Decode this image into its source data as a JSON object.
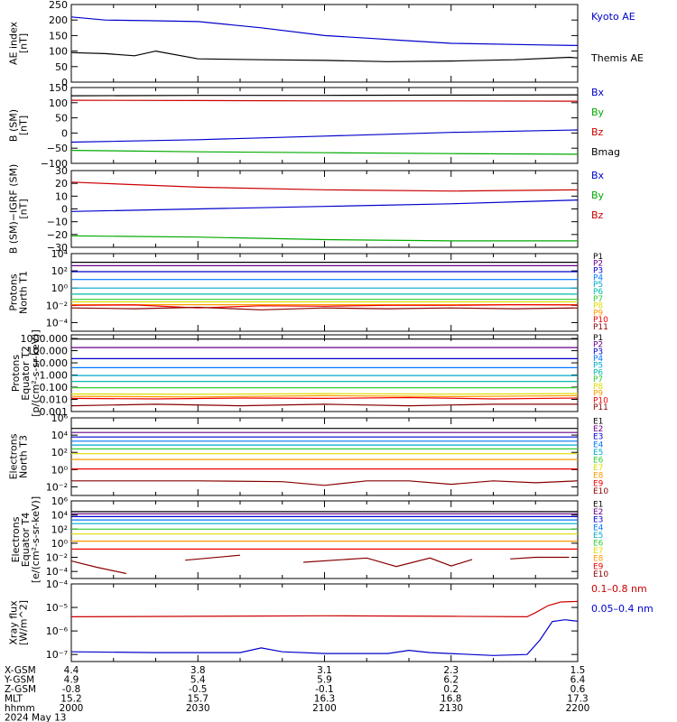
{
  "time_axis": {
    "rows": [
      {
        "label": "X-GSM",
        "values": [
          "4.4",
          "3.8",
          "3.1",
          "2.3",
          "1.5"
        ]
      },
      {
        "label": "Y-GSM",
        "values": [
          "4.9",
          "5.4",
          "5.9",
          "6.2",
          "6.4"
        ]
      },
      {
        "label": "Z-GSM",
        "values": [
          "-0.8",
          "-0.5",
          "-0.1",
          "0.2",
          "0.6"
        ]
      },
      {
        "label": "MLT",
        "values": [
          "15.2",
          "15.7",
          "16.3",
          "16.8",
          "17.3"
        ]
      },
      {
        "label": "hhmm",
        "values": [
          "2000",
          "2030",
          "2100",
          "2130",
          "2200"
        ]
      }
    ],
    "date": "2024 May 13"
  },
  "chart_data": [
    {
      "type": "line",
      "ylabel": [
        "AE index",
        "[nT]"
      ],
      "ylim": [
        0,
        250
      ],
      "yscale": "linear",
      "yticks": [
        0,
        50,
        100,
        150,
        200,
        250
      ],
      "ytick_labels": [
        "0",
        "50",
        "100",
        "150",
        "200",
        "250"
      ],
      "series": [
        {
          "name": "Kyoto AE",
          "color": "#0000cc",
          "t": [
            0,
            8,
            18,
            30,
            45,
            60,
            72,
            78,
            90,
            110,
            120
          ],
          "y": [
            210,
            200,
            198,
            195,
            175,
            150,
            140,
            135,
            125,
            120,
            118
          ]
        },
        {
          "name": "Themis AE",
          "color": "#000000",
          "t": [
            0,
            8,
            15,
            20,
            30,
            45,
            60,
            75,
            90,
            105,
            118,
            120
          ],
          "y": [
            95,
            92,
            85,
            100,
            75,
            72,
            70,
            66,
            68,
            72,
            80,
            78
          ]
        }
      ]
    },
    {
      "type": "line",
      "ylabel": [
        "B (SM)",
        "[nT]"
      ],
      "ylim": [
        -100,
        150
      ],
      "yscale": "linear",
      "yticks": [
        -100,
        -50,
        0,
        50,
        100,
        150
      ],
      "ytick_labels": [
        "−100",
        "−50",
        "0",
        "50",
        "100",
        "150"
      ],
      "series": [
        {
          "name": "Bx",
          "color": "#0000cc",
          "t": [
            0,
            30,
            60,
            90,
            120
          ],
          "y": [
            -30,
            -22,
            -10,
            2,
            10
          ]
        },
        {
          "name": "By",
          "color": "#00aa00",
          "t": [
            0,
            30,
            60,
            90,
            120
          ],
          "y": [
            -57,
            -62,
            -65,
            -68,
            -70
          ]
        },
        {
          "name": "Bz",
          "color": "#cc0000",
          "t": [
            0,
            30,
            60,
            90,
            120
          ],
          "y": [
            108,
            107,
            106,
            106,
            105
          ]
        },
        {
          "name": "Bmag",
          "color": "#000000",
          "t": [
            0,
            30,
            60,
            90,
            120
          ],
          "y": [
            123,
            124,
            124,
            125,
            126
          ]
        }
      ]
    },
    {
      "type": "line",
      "ylabel": [
        "B (SM)−IGRF (SM)",
        "[nT]"
      ],
      "ylim": [
        -30,
        30
      ],
      "yscale": "linear",
      "yticks": [
        -30,
        -20,
        -10,
        0,
        10,
        20,
        30
      ],
      "ytick_labels": [
        "−30",
        "−20",
        "−10",
        "0",
        "10",
        "20",
        "30"
      ],
      "series": [
        {
          "name": "Bx",
          "color": "#0000cc",
          "t": [
            0,
            30,
            60,
            90,
            110,
            120
          ],
          "y": [
            -2,
            0,
            2,
            4,
            6,
            7
          ]
        },
        {
          "name": "By",
          "color": "#00aa00",
          "t": [
            0,
            30,
            60,
            90,
            120
          ],
          "y": [
            -21,
            -22,
            -24,
            -25,
            -25
          ]
        },
        {
          "name": "Bz",
          "color": "#cc0000",
          "t": [
            0,
            30,
            60,
            90,
            120
          ],
          "y": [
            21,
            17,
            15,
            14,
            15
          ]
        }
      ]
    },
    {
      "type": "line",
      "ylabel": [
        "Protons",
        "North T1"
      ],
      "ylim": [
        1e-05,
        10000
      ],
      "yscale": "log",
      "yticks": [
        0.0001,
        0.01,
        1,
        100,
        10000
      ],
      "ytick_labels": [
        "10⁻⁴",
        "10⁻²",
        "10⁰",
        "10²",
        "10⁴"
      ],
      "series": [
        {
          "name": "P1",
          "color": "#000000",
          "t": [
            0,
            120
          ],
          "y": [
            1000,
            1000
          ]
        },
        {
          "name": "P2",
          "color": "#660088",
          "t": [
            0,
            120
          ],
          "y": [
            400,
            400
          ]
        },
        {
          "name": "P3",
          "color": "#0000cc",
          "t": [
            0,
            120
          ],
          "y": [
            80,
            80
          ]
        },
        {
          "name": "P4",
          "color": "#0077ff",
          "t": [
            0,
            120
          ],
          "y": [
            10,
            10
          ]
        },
        {
          "name": "P5",
          "color": "#00aacc",
          "t": [
            0,
            120
          ],
          "y": [
            1,
            1
          ]
        },
        {
          "name": "P6",
          "color": "#00bbaa",
          "t": [
            0,
            120
          ],
          "y": [
            0.2,
            0.2
          ]
        },
        {
          "name": "P7",
          "color": "#33cc33",
          "t": [
            0,
            120
          ],
          "y": [
            0.05,
            0.05
          ]
        },
        {
          "name": "P8",
          "color": "#dddd00",
          "t": [
            0,
            120
          ],
          "y": [
            0.025,
            0.025
          ]
        },
        {
          "name": "P9",
          "color": "#ff9900",
          "t": [
            0,
            120
          ],
          "y": [
            0.012,
            0.012
          ]
        },
        {
          "name": "P10",
          "color": "#ee0000",
          "t": [
            0,
            15,
            30,
            45,
            60,
            75,
            90,
            105,
            120
          ],
          "y": [
            0.01,
            0.011,
            0.005,
            0.009,
            0.008,
            0.01,
            0.01,
            0.012,
            0.011
          ]
        },
        {
          "name": "P11",
          "color": "#880000",
          "t": [
            0,
            15,
            30,
            45,
            60,
            75,
            90,
            105,
            120
          ],
          "y": [
            0.005,
            0.004,
            0.006,
            0.003,
            0.005,
            0.004,
            0.005,
            0.004,
            0.005
          ]
        }
      ]
    },
    {
      "type": "line",
      "ylabel": [
        "Protons",
        "Equator T2",
        "[p/(cm²-s-sr-keV)]"
      ],
      "ylim": [
        0.001,
        2000
      ],
      "yscale": "log",
      "yticks": [
        0.001,
        0.01,
        0.1,
        1,
        10,
        100,
        1000
      ],
      "ytick_labels": [
        "0.001",
        "0.010",
        "0.100",
        "1.000",
        "10.000",
        "100.000",
        "1000.000"
      ],
      "series": [
        {
          "name": "P1",
          "color": "#000000",
          "t": [
            0,
            120
          ],
          "y": [
            900,
            900
          ]
        },
        {
          "name": "P2",
          "color": "#660088",
          "t": [
            0,
            120
          ],
          "y": [
            180,
            180
          ]
        },
        {
          "name": "P3",
          "color": "#0000cc",
          "t": [
            0,
            120
          ],
          "y": [
            22,
            22
          ]
        },
        {
          "name": "P4",
          "color": "#0077ff",
          "t": [
            0,
            120
          ],
          "y": [
            4,
            4
          ]
        },
        {
          "name": "P5",
          "color": "#00aacc",
          "t": [
            0,
            120
          ],
          "y": [
            0.9,
            0.9
          ]
        },
        {
          "name": "P6",
          "color": "#00bbaa",
          "t": [
            0,
            120
          ],
          "y": [
            0.3,
            0.3
          ]
        },
        {
          "name": "P7",
          "color": "#33cc33",
          "t": [
            0,
            120
          ],
          "y": [
            0.09,
            0.09
          ]
        },
        {
          "name": "P8",
          "color": "#dddd00",
          "t": [
            0,
            30,
            60,
            90,
            120
          ],
          "y": [
            0.028,
            0.026,
            0.03,
            0.027,
            0.03
          ]
        },
        {
          "name": "P9",
          "color": "#ff9900",
          "t": [
            0,
            30,
            60,
            90,
            120
          ],
          "y": [
            0.018,
            0.016,
            0.02,
            0.017,
            0.02
          ]
        },
        {
          "name": "P10",
          "color": "#ee0000",
          "t": [
            0,
            20,
            40,
            60,
            80,
            100,
            120
          ],
          "y": [
            0.012,
            0.011,
            0.013,
            0.012,
            0.014,
            0.011,
            0.013
          ]
        },
        {
          "name": "P11",
          "color": "#880000",
          "t": [
            0,
            20,
            40,
            60,
            80,
            100,
            120
          ],
          "y": [
            0.003,
            0.004,
            0.003,
            0.004,
            0.003,
            0.004,
            0.004
          ]
        }
      ]
    },
    {
      "type": "line",
      "ylabel": [
        "Electrons",
        "North T3"
      ],
      "ylim": [
        0.001,
        1000000
      ],
      "yscale": "log",
      "yticks": [
        0.01,
        1,
        100,
        10000,
        1000000
      ],
      "ytick_labels": [
        "10⁻²",
        "10⁰",
        "10²",
        "10⁴",
        "10⁶"
      ],
      "series": [
        {
          "name": "E1",
          "color": "#000000",
          "t": [
            0,
            120
          ],
          "y": [
            60000,
            60000
          ]
        },
        {
          "name": "E2",
          "color": "#660088",
          "t": [
            0,
            120
          ],
          "y": [
            20000,
            20000
          ]
        },
        {
          "name": "E3",
          "color": "#0000cc",
          "t": [
            0,
            120
          ],
          "y": [
            6000,
            6000
          ]
        },
        {
          "name": "E4",
          "color": "#0077ff",
          "t": [
            0,
            120
          ],
          "y": [
            2000,
            2000
          ]
        },
        {
          "name": "E5",
          "color": "#00aacc",
          "t": [
            0,
            120
          ],
          "y": [
            700,
            700
          ]
        },
        {
          "name": "E6",
          "color": "#33cc33",
          "t": [
            0,
            120
          ],
          "y": [
            250,
            250
          ]
        },
        {
          "name": "E7",
          "color": "#dddd00",
          "t": [
            0,
            120
          ],
          "y": [
            70,
            70
          ]
        },
        {
          "name": "E8",
          "color": "#ff9900",
          "t": [
            0,
            120
          ],
          "y": [
            15,
            15
          ]
        },
        {
          "name": "E9",
          "color": "#ee0000",
          "t": [
            0,
            120
          ],
          "y": [
            1.2,
            1.2
          ]
        },
        {
          "name": "E10",
          "color": "#880000",
          "t": [
            0,
            10,
            30,
            50,
            60,
            70,
            80,
            90,
            100,
            110,
            120
          ],
          "y": [
            0.05,
            0.05,
            0.05,
            0.04,
            0.015,
            0.05,
            0.05,
            0.02,
            0.05,
            0.03,
            0.05
          ]
        }
      ]
    },
    {
      "type": "line",
      "ylabel": [
        "Electrons",
        "Equator T4",
        "[e/(cm²-s-sr-keV)]"
      ],
      "ylim": [
        1e-05,
        1000000
      ],
      "yscale": "log",
      "yticks": [
        0.0001,
        0.01,
        1,
        100,
        10000,
        1000000
      ],
      "ytick_labels": [
        "10⁻⁴",
        "10⁻²",
        "10⁰",
        "10²",
        "10⁴",
        "10⁶"
      ],
      "series": [
        {
          "name": "E1",
          "color": "#000000",
          "t": [
            0,
            120
          ],
          "y": [
            30000,
            30000
          ]
        },
        {
          "name": "E2",
          "color": "#660088",
          "t": [
            0,
            120
          ],
          "y": [
            15000,
            15000
          ]
        },
        {
          "name": "E3",
          "color": "#0000cc",
          "t": [
            0,
            120
          ],
          "y": [
            6000,
            6000
          ]
        },
        {
          "name": "E4",
          "color": "#0077ff",
          "t": [
            0,
            120
          ],
          "y": [
            2000,
            2000
          ]
        },
        {
          "name": "E5",
          "color": "#00aacc",
          "t": [
            0,
            120
          ],
          "y": [
            600,
            600
          ]
        },
        {
          "name": "E6",
          "color": "#33cc33",
          "t": [
            0,
            120
          ],
          "y": [
            100,
            100
          ]
        },
        {
          "name": "E7",
          "color": "#dddd00",
          "t": [
            0,
            120
          ],
          "y": [
            20,
            20
          ]
        },
        {
          "name": "E8",
          "color": "#ff9900",
          "t": [
            0,
            120
          ],
          "y": [
            2,
            2
          ]
        },
        {
          "name": "E9",
          "color": "#ee0000",
          "t": [
            0,
            120
          ],
          "y": [
            0.15,
            0.15
          ]
        },
        {
          "name": "E10",
          "color": "#880000",
          "t": [
            0,
            6,
            13,
            20,
            27,
            40,
            47,
            55,
            70,
            77,
            85,
            90,
            95,
            100,
            104,
            110,
            118
          ],
          "y": [
            0.003,
            0.0004,
            5e-05,
            null,
            0.004,
            0.02,
            null,
            0.002,
            0.008,
            0.0005,
            0.008,
            0.0006,
            0.005,
            null,
            0.006,
            0.01,
            0.01
          ]
        }
      ]
    },
    {
      "type": "line",
      "ylabel": [
        "Xray flux",
        "[W/m^2]"
      ],
      "ylim": [
        5e-08,
        0.0001
      ],
      "yscale": "log",
      "yticks": [
        1e-07,
        1e-06,
        1e-05,
        0.0001
      ],
      "ytick_labels": [
        "10⁻⁷",
        "10⁻⁶",
        "10⁻⁵",
        "10⁻⁴"
      ],
      "series": [
        {
          "name": "0.1–0.8 nm",
          "color": "#cc0000",
          "t": [
            0,
            30,
            60,
            90,
            108,
            110,
            113,
            116,
            120
          ],
          "y": [
            4e-06,
            4.2e-06,
            4.4e-06,
            4.2e-06,
            4e-06,
            6e-06,
            1.2e-05,
            1.7e-05,
            1.8e-05
          ]
        },
        {
          "name": "0.05–0.4 nm",
          "color": "#0000cc",
          "t": [
            0,
            20,
            40,
            45,
            50,
            60,
            75,
            80,
            85,
            100,
            108,
            111,
            114,
            117,
            120
          ],
          "y": [
            1.3e-07,
            1.2e-07,
            1.2e-07,
            1.9e-07,
            1.3e-07,
            1.1e-07,
            1.1e-07,
            1.5e-07,
            1.2e-07,
            9e-08,
            1e-07,
            4e-07,
            2.5e-06,
            3e-06,
            2.6e-06
          ]
        }
      ]
    }
  ]
}
